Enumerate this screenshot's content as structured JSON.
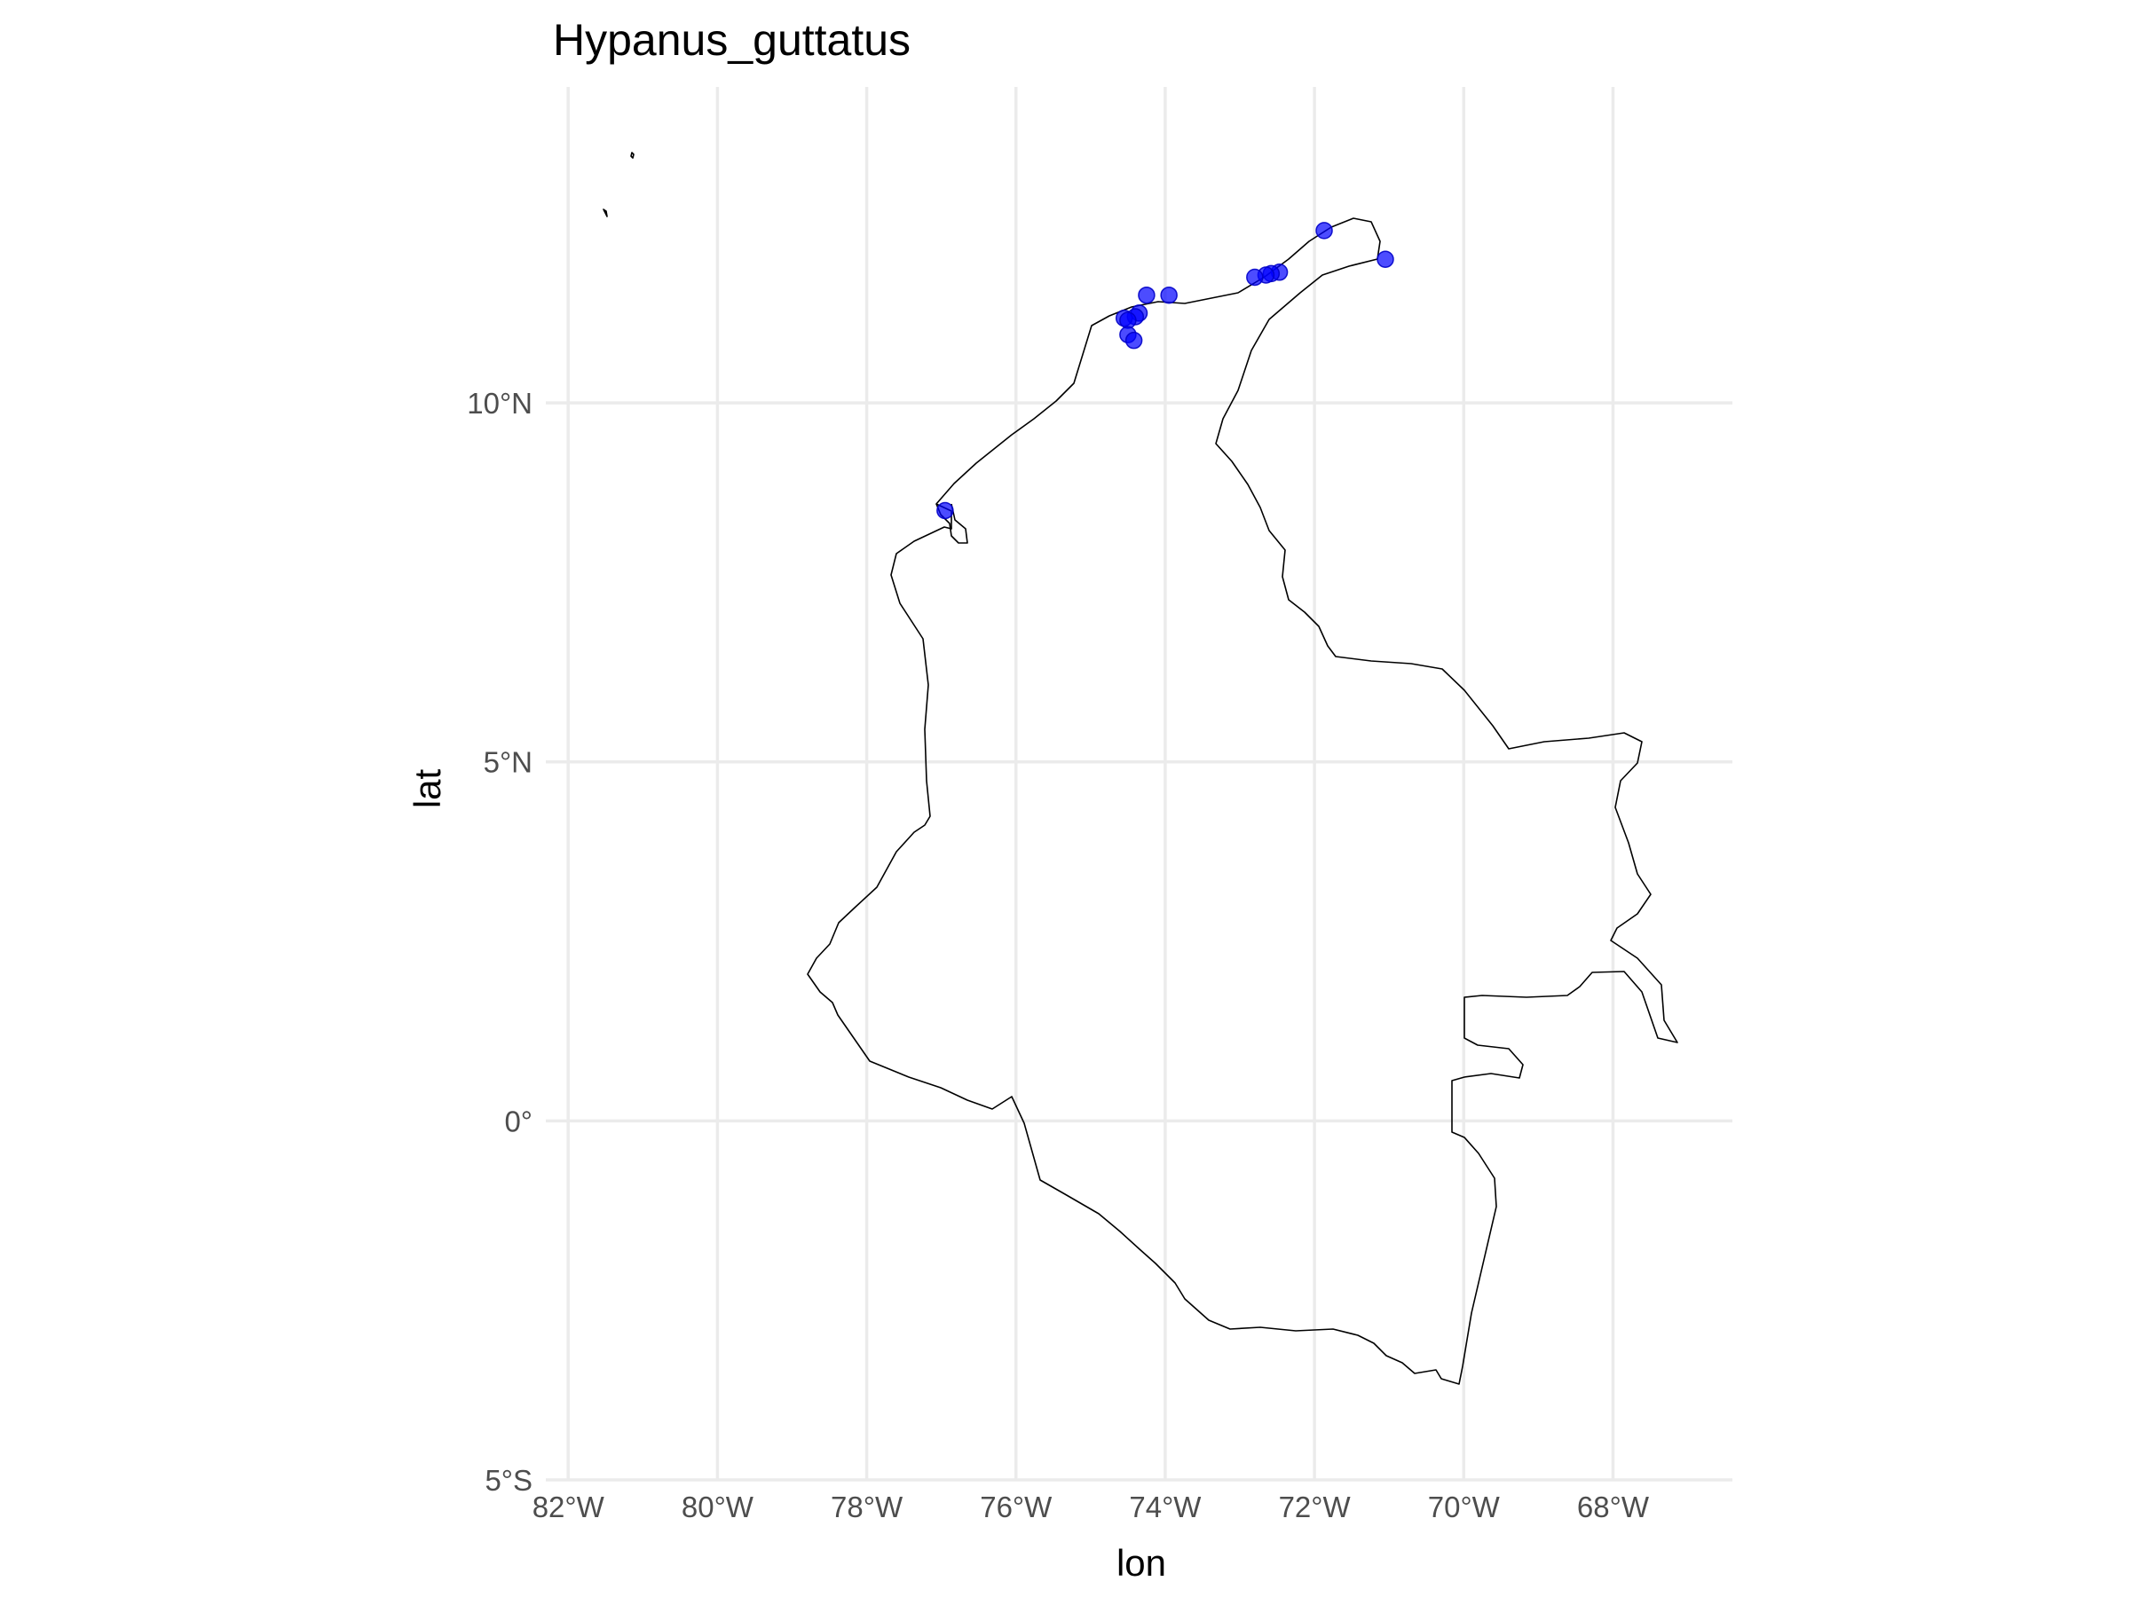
{
  "chart_data": {
    "type": "scatter",
    "title": "Hypanus_guttatus",
    "xlabel": "lon",
    "ylabel": "lat",
    "xlim": [
      -82.3,
      -66.4
    ],
    "ylim": [
      -5.0,
      14.4
    ],
    "grid": true,
    "x_ticks": [
      {
        "value": -82,
        "label": "82°W"
      },
      {
        "value": -80,
        "label": "80°W"
      },
      {
        "value": -78,
        "label": "78°W"
      },
      {
        "value": -76,
        "label": "76°W"
      },
      {
        "value": -74,
        "label": "74°W"
      },
      {
        "value": -72,
        "label": "72°W"
      },
      {
        "value": -70,
        "label": "70°W"
      },
      {
        "value": -68,
        "label": "68°W"
      }
    ],
    "y_ticks": [
      {
        "value": 10,
        "label": "10°N"
      },
      {
        "value": 5,
        "label": "5°N"
      },
      {
        "value": 0,
        "label": "0°"
      },
      {
        "value": -5,
        "label": "5°S"
      }
    ],
    "point_color": "#0000ff",
    "points": [
      {
        "lon": -71.87,
        "lat": 12.4
      },
      {
        "lon": -71.05,
        "lat": 12.0
      },
      {
        "lon": -72.47,
        "lat": 11.82
      },
      {
        "lon": -72.58,
        "lat": 11.8
      },
      {
        "lon": -72.65,
        "lat": 11.78
      },
      {
        "lon": -72.8,
        "lat": 11.75
      },
      {
        "lon": -74.25,
        "lat": 11.5
      },
      {
        "lon": -73.95,
        "lat": 11.5
      },
      {
        "lon": -74.35,
        "lat": 11.25
      },
      {
        "lon": -74.4,
        "lat": 11.2
      },
      {
        "lon": -74.55,
        "lat": 11.18
      },
      {
        "lon": -74.5,
        "lat": 11.15
      },
      {
        "lon": -74.5,
        "lat": 10.95
      },
      {
        "lon": -74.42,
        "lat": 10.87
      },
      {
        "lon": -76.95,
        "lat": 8.5
      }
    ]
  }
}
